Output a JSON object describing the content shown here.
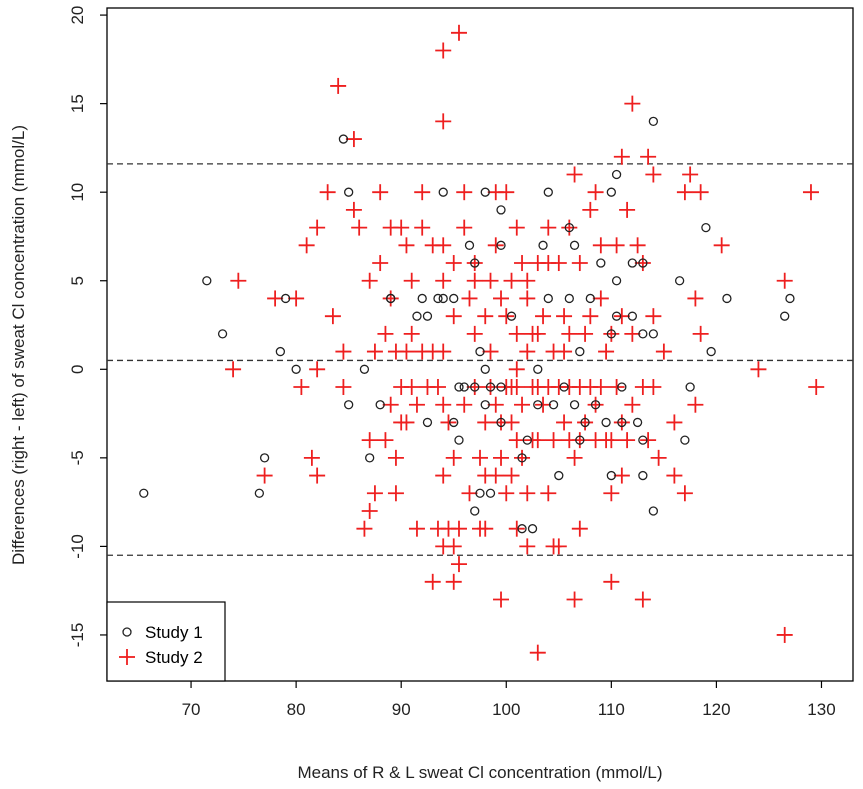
{
  "chart_data": {
    "type": "scatter",
    "title": "",
    "xlabel": "Means of R & L sweat Cl concentration (mmol/L)",
    "ylabel": "Differences (right - left) of sweat Cl concentration (mmol/L)",
    "xlim": [
      62,
      133
    ],
    "ylim": [
      -17.6,
      20.4
    ],
    "x_ticks": [
      70,
      80,
      90,
      100,
      110,
      120,
      130
    ],
    "y_ticks": [
      -15,
      -10,
      -5,
      0,
      5,
      10,
      15,
      20
    ],
    "reference_lines": [
      {
        "name": "upper-limit",
        "y": 11.6
      },
      {
        "name": "mean-difference",
        "y": 0.5
      },
      {
        "name": "lower-limit",
        "y": -10.5
      }
    ],
    "grid": false,
    "legend_position": "bottom-left",
    "series": [
      {
        "name": "Study 1",
        "marker": "circle",
        "color": "#222222",
        "points": [
          [
            65.5,
            -7
          ],
          [
            71.5,
            5
          ],
          [
            73,
            2
          ],
          [
            76.5,
            -7
          ],
          [
            77,
            -5
          ],
          [
            78.5,
            1
          ],
          [
            79,
            4
          ],
          [
            80,
            0
          ],
          [
            84.5,
            13
          ],
          [
            85,
            10
          ],
          [
            85,
            -2
          ],
          [
            86.5,
            0
          ],
          [
            87,
            -5
          ],
          [
            88,
            -2
          ],
          [
            89,
            4
          ],
          [
            89,
            4
          ],
          [
            91.5,
            3
          ],
          [
            92,
            4
          ],
          [
            92.5,
            3
          ],
          [
            92.5,
            -3
          ],
          [
            93.5,
            4
          ],
          [
            94,
            4
          ],
          [
            94,
            10
          ],
          [
            95,
            4
          ],
          [
            95,
            -3
          ],
          [
            95.5,
            -1
          ],
          [
            95.5,
            -4
          ],
          [
            96,
            -1
          ],
          [
            96.5,
            7
          ],
          [
            97,
            6
          ],
          [
            97,
            -1
          ],
          [
            97,
            -8
          ],
          [
            97.5,
            1
          ],
          [
            97.5,
            -7
          ],
          [
            98,
            10
          ],
          [
            98,
            0
          ],
          [
            98,
            -2
          ],
          [
            98.5,
            -1
          ],
          [
            98.5,
            -7
          ],
          [
            99.5,
            9
          ],
          [
            99.5,
            7
          ],
          [
            99.5,
            -1
          ],
          [
            99.5,
            -3
          ],
          [
            100.5,
            3
          ],
          [
            101.5,
            -5
          ],
          [
            101.5,
            -9
          ],
          [
            102,
            -4
          ],
          [
            102.5,
            -9
          ],
          [
            103,
            0
          ],
          [
            103,
            -2
          ],
          [
            103.5,
            7
          ],
          [
            104,
            10
          ],
          [
            104,
            4
          ],
          [
            104.5,
            -2
          ],
          [
            105,
            -6
          ],
          [
            105.5,
            -1
          ],
          [
            106,
            4
          ],
          [
            106,
            8
          ],
          [
            106.5,
            7
          ],
          [
            106.5,
            -2
          ],
          [
            107,
            1
          ],
          [
            107,
            -4
          ],
          [
            107.5,
            -3
          ],
          [
            108,
            4
          ],
          [
            108.5,
            -2
          ],
          [
            109,
            6
          ],
          [
            109.5,
            -3
          ],
          [
            110,
            10
          ],
          [
            110,
            2
          ],
          [
            110,
            -6
          ],
          [
            110.5,
            11
          ],
          [
            110.5,
            5
          ],
          [
            110.5,
            3
          ],
          [
            111,
            -1
          ],
          [
            111,
            -3
          ],
          [
            112,
            3
          ],
          [
            112,
            6
          ],
          [
            112.5,
            -3
          ],
          [
            113,
            6
          ],
          [
            113,
            2
          ],
          [
            113,
            -4
          ],
          [
            113,
            -6
          ],
          [
            114,
            14
          ],
          [
            114,
            2
          ],
          [
            114,
            -8
          ],
          [
            116.5,
            5
          ],
          [
            117,
            -4
          ],
          [
            117.5,
            -1
          ],
          [
            119,
            8
          ],
          [
            119.5,
            1
          ],
          [
            121,
            4
          ],
          [
            126.5,
            3
          ],
          [
            127,
            4
          ]
        ]
      },
      {
        "name": "Study 2",
        "marker": "plus",
        "color": "#ee1f1f",
        "points": [
          [
            74,
            0
          ],
          [
            74.5,
            5
          ],
          [
            77,
            -6
          ],
          [
            78,
            4
          ],
          [
            80,
            4
          ],
          [
            80.5,
            -1
          ],
          [
            81,
            7
          ],
          [
            81.5,
            -5
          ],
          [
            82,
            0
          ],
          [
            82,
            8
          ],
          [
            82,
            -6
          ],
          [
            83,
            10
          ],
          [
            83.5,
            3
          ],
          [
            84,
            16
          ],
          [
            84.5,
            1
          ],
          [
            84.5,
            -1
          ],
          [
            85.5,
            13
          ],
          [
            85.5,
            9
          ],
          [
            86,
            8
          ],
          [
            86.5,
            -9
          ],
          [
            87,
            5
          ],
          [
            87,
            -4
          ],
          [
            87,
            -8
          ],
          [
            87.5,
            1
          ],
          [
            87.5,
            -7
          ],
          [
            88,
            6
          ],
          [
            88,
            10
          ],
          [
            88.5,
            -4
          ],
          [
            88.5,
            2
          ],
          [
            89,
            -2
          ],
          [
            89,
            4
          ],
          [
            89,
            8
          ],
          [
            89.5,
            1
          ],
          [
            89.5,
            -5
          ],
          [
            89.5,
            -7
          ],
          [
            90,
            8
          ],
          [
            90,
            -3
          ],
          [
            90,
            -1
          ],
          [
            90.5,
            1
          ],
          [
            90.5,
            7
          ],
          [
            90.5,
            -3
          ],
          [
            91,
            5
          ],
          [
            91,
            -1
          ],
          [
            91,
            2
          ],
          [
            91.5,
            -9
          ],
          [
            91.5,
            -2
          ],
          [
            92,
            8
          ],
          [
            92,
            10
          ],
          [
            92,
            1
          ],
          [
            92.5,
            -1
          ],
          [
            93,
            -12
          ],
          [
            93,
            7
          ],
          [
            93,
            1
          ],
          [
            93.5,
            -1
          ],
          [
            93.5,
            -9
          ],
          [
            94,
            18
          ],
          [
            94,
            14
          ],
          [
            94,
            -10
          ],
          [
            94,
            7
          ],
          [
            94,
            5
          ],
          [
            94,
            1
          ],
          [
            94,
            -6
          ],
          [
            94,
            -2
          ],
          [
            94.5,
            -3
          ],
          [
            94.5,
            -9
          ],
          [
            95,
            -12
          ],
          [
            95,
            -10
          ],
          [
            95,
            6
          ],
          [
            95,
            3
          ],
          [
            95,
            -5
          ],
          [
            95.5,
            19
          ],
          [
            95.5,
            -11
          ],
          [
            95.5,
            -9
          ],
          [
            96,
            10
          ],
          [
            96,
            -2
          ],
          [
            96,
            8
          ],
          [
            96.5,
            4
          ],
          [
            96.5,
            -7
          ],
          [
            97,
            -1
          ],
          [
            97,
            2
          ],
          [
            97,
            5
          ],
          [
            97,
            6
          ],
          [
            97.5,
            -5
          ],
          [
            97.5,
            -9
          ],
          [
            98,
            3
          ],
          [
            98,
            -3
          ],
          [
            98,
            -6
          ],
          [
            98,
            -9
          ],
          [
            98.5,
            5
          ],
          [
            98.5,
            1
          ],
          [
            98.5,
            -1
          ],
          [
            99,
            10
          ],
          [
            99,
            7
          ],
          [
            99,
            -2
          ],
          [
            99,
            -6
          ],
          [
            99.5,
            -13
          ],
          [
            99.5,
            -5
          ],
          [
            99.5,
            4
          ],
          [
            99.5,
            -3
          ],
          [
            100,
            10
          ],
          [
            100,
            -1
          ],
          [
            100,
            3
          ],
          [
            100,
            -7
          ],
          [
            100.5,
            5
          ],
          [
            100.5,
            -6
          ],
          [
            100.5,
            -1
          ],
          [
            100.5,
            -3
          ],
          [
            101,
            -9
          ],
          [
            101,
            8
          ],
          [
            101,
            -4
          ],
          [
            101,
            2
          ],
          [
            101,
            0
          ],
          [
            101,
            -1
          ],
          [
            101.5,
            6
          ],
          [
            101.5,
            -2
          ],
          [
            101.5,
            -5
          ],
          [
            102,
            1
          ],
          [
            102,
            -7
          ],
          [
            102,
            -10
          ],
          [
            102,
            4
          ],
          [
            102,
            5
          ],
          [
            102.5,
            -1
          ],
          [
            102.5,
            2
          ],
          [
            102.5,
            -4
          ],
          [
            103,
            -16
          ],
          [
            103,
            6
          ],
          [
            103,
            -1
          ],
          [
            103,
            2
          ],
          [
            103,
            -4
          ],
          [
            103.5,
            3
          ],
          [
            103.5,
            -2
          ],
          [
            104,
            8
          ],
          [
            104,
            -1
          ],
          [
            104,
            -7
          ],
          [
            104,
            6
          ],
          [
            104.5,
            -10
          ],
          [
            104.5,
            1
          ],
          [
            104.5,
            -4
          ],
          [
            105,
            -10
          ],
          [
            105,
            6
          ],
          [
            105,
            -1
          ],
          [
            105.5,
            3
          ],
          [
            105.5,
            1
          ],
          [
            105.5,
            -3
          ],
          [
            106,
            8
          ],
          [
            106,
            -1
          ],
          [
            106,
            2
          ],
          [
            106,
            -4
          ],
          [
            106.5,
            11
          ],
          [
            106.5,
            -13
          ],
          [
            106.5,
            -5
          ],
          [
            107,
            6
          ],
          [
            107,
            -1
          ],
          [
            107,
            -4
          ],
          [
            107,
            -9
          ],
          [
            107.5,
            2
          ],
          [
            107.5,
            -3
          ],
          [
            108,
            9
          ],
          [
            108,
            -1
          ],
          [
            108,
            3
          ],
          [
            108.5,
            10
          ],
          [
            108.5,
            -2
          ],
          [
            108.5,
            -4
          ],
          [
            109,
            7
          ],
          [
            109,
            -1
          ],
          [
            109,
            4
          ],
          [
            109.5,
            1
          ],
          [
            109.5,
            -4
          ],
          [
            110,
            -12
          ],
          [
            110,
            -7
          ],
          [
            110,
            2
          ],
          [
            110,
            -4
          ],
          [
            110.5,
            7
          ],
          [
            110.5,
            -1
          ],
          [
            111,
            12
          ],
          [
            111,
            -6
          ],
          [
            111,
            -3
          ],
          [
            111,
            3
          ],
          [
            111.5,
            9
          ],
          [
            111.5,
            -4
          ],
          [
            112,
            15
          ],
          [
            112,
            2
          ],
          [
            112,
            -2
          ],
          [
            112.5,
            7
          ],
          [
            113,
            -13
          ],
          [
            113,
            6
          ],
          [
            113,
            -1
          ],
          [
            113.5,
            12
          ],
          [
            113.5,
            -4
          ],
          [
            114,
            11
          ],
          [
            114,
            -1
          ],
          [
            114,
            3
          ],
          [
            114.5,
            -5
          ],
          [
            115,
            1
          ],
          [
            116,
            -6
          ],
          [
            116,
            -3
          ],
          [
            117,
            10
          ],
          [
            117,
            -7
          ],
          [
            117.5,
            11
          ],
          [
            118,
            4
          ],
          [
            118,
            -2
          ],
          [
            118.5,
            10
          ],
          [
            118.5,
            2
          ],
          [
            120.5,
            7
          ],
          [
            124,
            0
          ],
          [
            126.5,
            5
          ],
          [
            126.5,
            -15
          ],
          [
            129,
            10
          ],
          [
            129.5,
            -1
          ]
        ]
      }
    ]
  }
}
